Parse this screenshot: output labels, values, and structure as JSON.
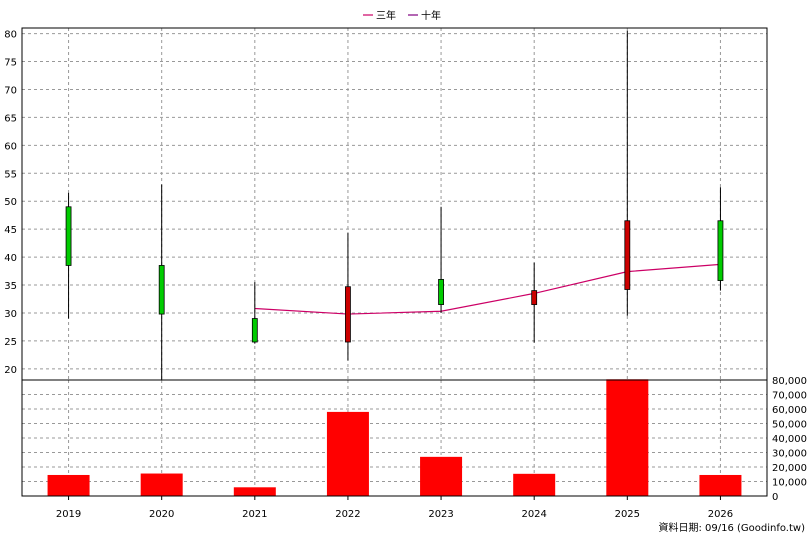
{
  "legend": [
    {
      "label": "三年",
      "color": "#cc0066"
    },
    {
      "label": "十年",
      "color": "#800080"
    }
  ],
  "footer": "資料日期: 09/16  (Goodinfo.tw)",
  "chart_data": [
    {
      "type": "candlestick",
      "title": "",
      "categories": [
        "2019",
        "2020",
        "2021",
        "2022",
        "2023",
        "2024",
        "2025",
        "2026"
      ],
      "ylim": [
        18,
        81
      ],
      "yticks": [
        20,
        25,
        30,
        35,
        40,
        45,
        50,
        55,
        60,
        65,
        70,
        75,
        80
      ],
      "candles": [
        {
          "year": "2019",
          "open": 38.5,
          "close": 49.0,
          "high": 51.5,
          "low": 29.0,
          "color": "#00cc00"
        },
        {
          "year": "2020",
          "open": 29.8,
          "close": 38.5,
          "high": 53.0,
          "low": 18.0,
          "color": "#00cc00"
        },
        {
          "year": "2021",
          "open": 24.8,
          "close": 29.0,
          "high": 35.5,
          "low": 24.5,
          "color": "#00cc00"
        },
        {
          "year": "2022",
          "open": 34.7,
          "close": 24.8,
          "high": 44.3,
          "low": 21.5,
          "color": "#cc0000"
        },
        {
          "year": "2023",
          "open": 31.5,
          "close": 36.0,
          "high": 49.0,
          "low": 30.0,
          "color": "#00cc00"
        },
        {
          "year": "2024",
          "open": 34.0,
          "close": 31.5,
          "high": 39.0,
          "low": 24.7,
          "color": "#cc0000"
        },
        {
          "year": "2025",
          "open": 46.5,
          "close": 34.2,
          "high": 80.5,
          "low": 29.5,
          "color": "#cc0000"
        },
        {
          "year": "2026",
          "open": 35.8,
          "close": 46.5,
          "high": 52.5,
          "low": 34.0,
          "color": "#00cc00"
        }
      ],
      "lines": [
        {
          "name": "三年",
          "color": "#cc0066",
          "x": [
            "2021",
            "2022",
            "2023",
            "2024",
            "2025",
            "2026"
          ],
          "values": [
            30.8,
            29.8,
            30.3,
            33.5,
            37.4,
            38.7
          ]
        }
      ],
      "grid": true
    },
    {
      "type": "bar",
      "categories": [
        "2019",
        "2020",
        "2021",
        "2022",
        "2023",
        "2024",
        "2025",
        "2026"
      ],
      "values": [
        14500,
        15500,
        6000,
        58000,
        27000,
        15300,
        80500,
        14500
      ],
      "color": "#ff0000",
      "ylim": [
        0,
        80000
      ],
      "yticks": [
        "0",
        "10,000",
        "20,000",
        "30,000",
        "40,000",
        "50,000",
        "60,000",
        "70,000",
        "80,000"
      ],
      "grid": true
    }
  ]
}
